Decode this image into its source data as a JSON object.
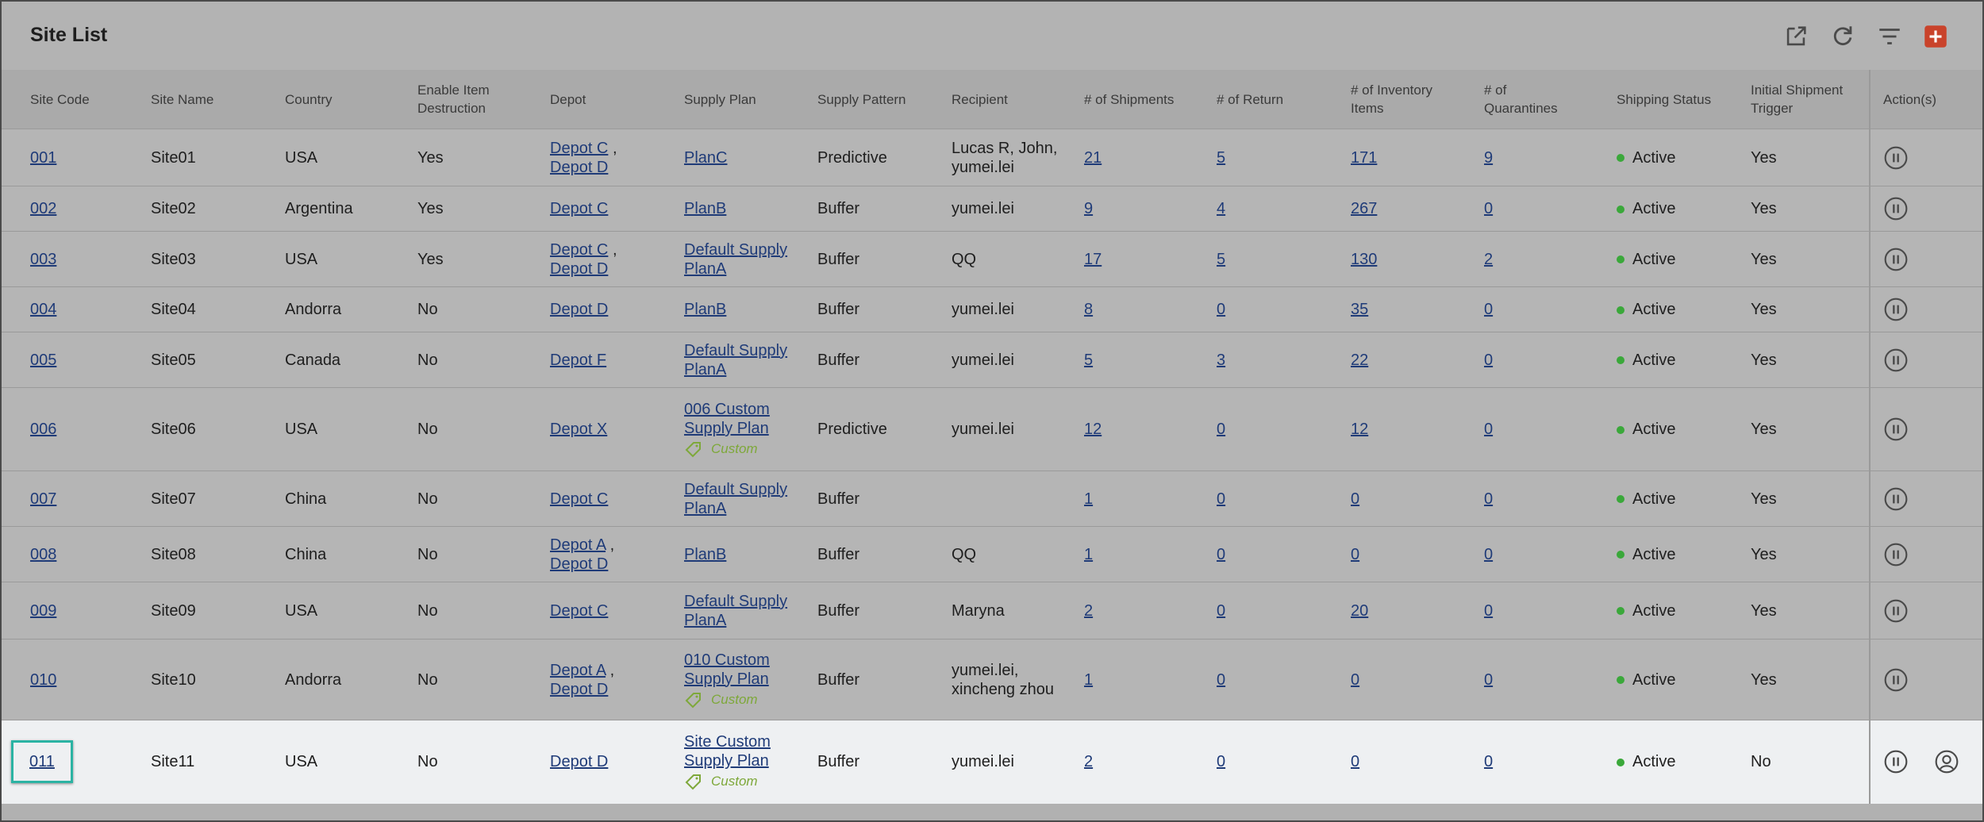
{
  "header": {
    "title": "Site List"
  },
  "table": {
    "columns": [
      "Site Code",
      "Site Name",
      "Country",
      "Enable Item Destruction",
      "Depot",
      "Supply Plan",
      "Supply Pattern",
      "Recipient",
      "# of Shipments",
      "# of Return",
      "# of Inventory Items",
      "# of Quarantines",
      "Shipping Status",
      "Initial Shipment Trigger",
      "Action(s)"
    ],
    "depot_separator": ",",
    "rows": [
      {
        "code": "001",
        "name": "Site01",
        "country": "USA",
        "destruction": "Yes",
        "depots": [
          "Depot C",
          "Depot D"
        ],
        "plan": "PlanC",
        "pattern": "Predictive",
        "recipient": "Lucas R, John, yumei.lei",
        "shipments": 21,
        "returns": 5,
        "inventory": 171,
        "quarantines": 9,
        "status": "Active",
        "trigger": "Yes"
      },
      {
        "code": "002",
        "name": "Site02",
        "country": "Argentina",
        "destruction": "Yes",
        "depots": [
          "Depot C"
        ],
        "plan": "PlanB",
        "pattern": "Buffer",
        "recipient": "yumei.lei",
        "shipments": 9,
        "returns": 4,
        "inventory": 267,
        "quarantines": 0,
        "status": "Active",
        "trigger": "Yes"
      },
      {
        "code": "003",
        "name": "Site03",
        "country": "USA",
        "destruction": "Yes",
        "depots": [
          "Depot C",
          "Depot D"
        ],
        "plan": "Default Supply PlanA",
        "pattern": "Buffer",
        "recipient": "QQ",
        "shipments": 17,
        "returns": 5,
        "inventory": 130,
        "quarantines": 2,
        "status": "Active",
        "trigger": "Yes"
      },
      {
        "code": "004",
        "name": "Site04",
        "country": "Andorra",
        "destruction": "No",
        "depots": [
          "Depot D"
        ],
        "plan": "PlanB",
        "pattern": "Buffer",
        "recipient": "yumei.lei",
        "shipments": 8,
        "returns": 0,
        "inventory": 35,
        "quarantines": 0,
        "status": "Active",
        "trigger": "Yes"
      },
      {
        "code": "005",
        "name": "Site05",
        "country": "Canada",
        "destruction": "No",
        "depots": [
          "Depot F"
        ],
        "plan": "Default Supply PlanA",
        "pattern": "Buffer",
        "recipient": "yumei.lei",
        "shipments": 5,
        "returns": 3,
        "inventory": 22,
        "quarantines": 0,
        "status": "Active",
        "trigger": "Yes"
      },
      {
        "code": "006",
        "name": "Site06",
        "country": "USA",
        "destruction": "No",
        "depots": [
          "Depot X"
        ],
        "plan": "006 Custom Supply Plan",
        "tag": "Custom",
        "pattern": "Predictive",
        "recipient": "yumei.lei",
        "shipments": 12,
        "returns": 0,
        "inventory": 12,
        "quarantines": 0,
        "status": "Active",
        "trigger": "Yes"
      },
      {
        "code": "007",
        "name": "Site07",
        "country": "China",
        "destruction": "No",
        "depots": [
          "Depot C"
        ],
        "plan": "Default Supply PlanA",
        "pattern": "Buffer",
        "shipments": 1,
        "returns": 0,
        "inventory": 0,
        "quarantines": 0,
        "status": "Active",
        "trigger": "Yes"
      },
      {
        "code": "008",
        "name": "Site08",
        "country": "China",
        "destruction": "No",
        "depots": [
          "Depot A",
          "Depot D"
        ],
        "plan": "PlanB",
        "pattern": "Buffer",
        "recipient": "QQ",
        "shipments": 1,
        "returns": 0,
        "inventory": 0,
        "quarantines": 0,
        "status": "Active",
        "trigger": "Yes"
      },
      {
        "code": "009",
        "name": "Site09",
        "country": "USA",
        "destruction": "No",
        "depots": [
          "Depot C"
        ],
        "plan": "Default Supply PlanA",
        "pattern": "Buffer",
        "recipient": "Maryna",
        "shipments": 2,
        "returns": 0,
        "inventory": 20,
        "quarantines": 0,
        "status": "Active",
        "trigger": "Yes"
      },
      {
        "code": "010",
        "name": "Site10",
        "country": "Andorra",
        "destruction": "No",
        "depots": [
          "Depot A",
          "Depot D"
        ],
        "plan": "010 Custom Supply Plan",
        "tag": "Custom",
        "pattern": "Buffer",
        "recipient": "yumei.lei, xincheng zhou",
        "shipments": 1,
        "returns": 0,
        "inventory": 0,
        "quarantines": 0,
        "status": "Active",
        "trigger": "Yes"
      },
      {
        "code": "011",
        "name": "Site11",
        "country": "USA",
        "destruction": "No",
        "depots": [
          "Depot D"
        ],
        "plan": "Site Custom Supply Plan",
        "tag": "Custom",
        "pattern": "Buffer",
        "recipient": "yumei.lei",
        "shipments": 2,
        "returns": 0,
        "inventory": 0,
        "quarantines": 0,
        "status": "Active",
        "trigger": "No"
      }
    ]
  }
}
